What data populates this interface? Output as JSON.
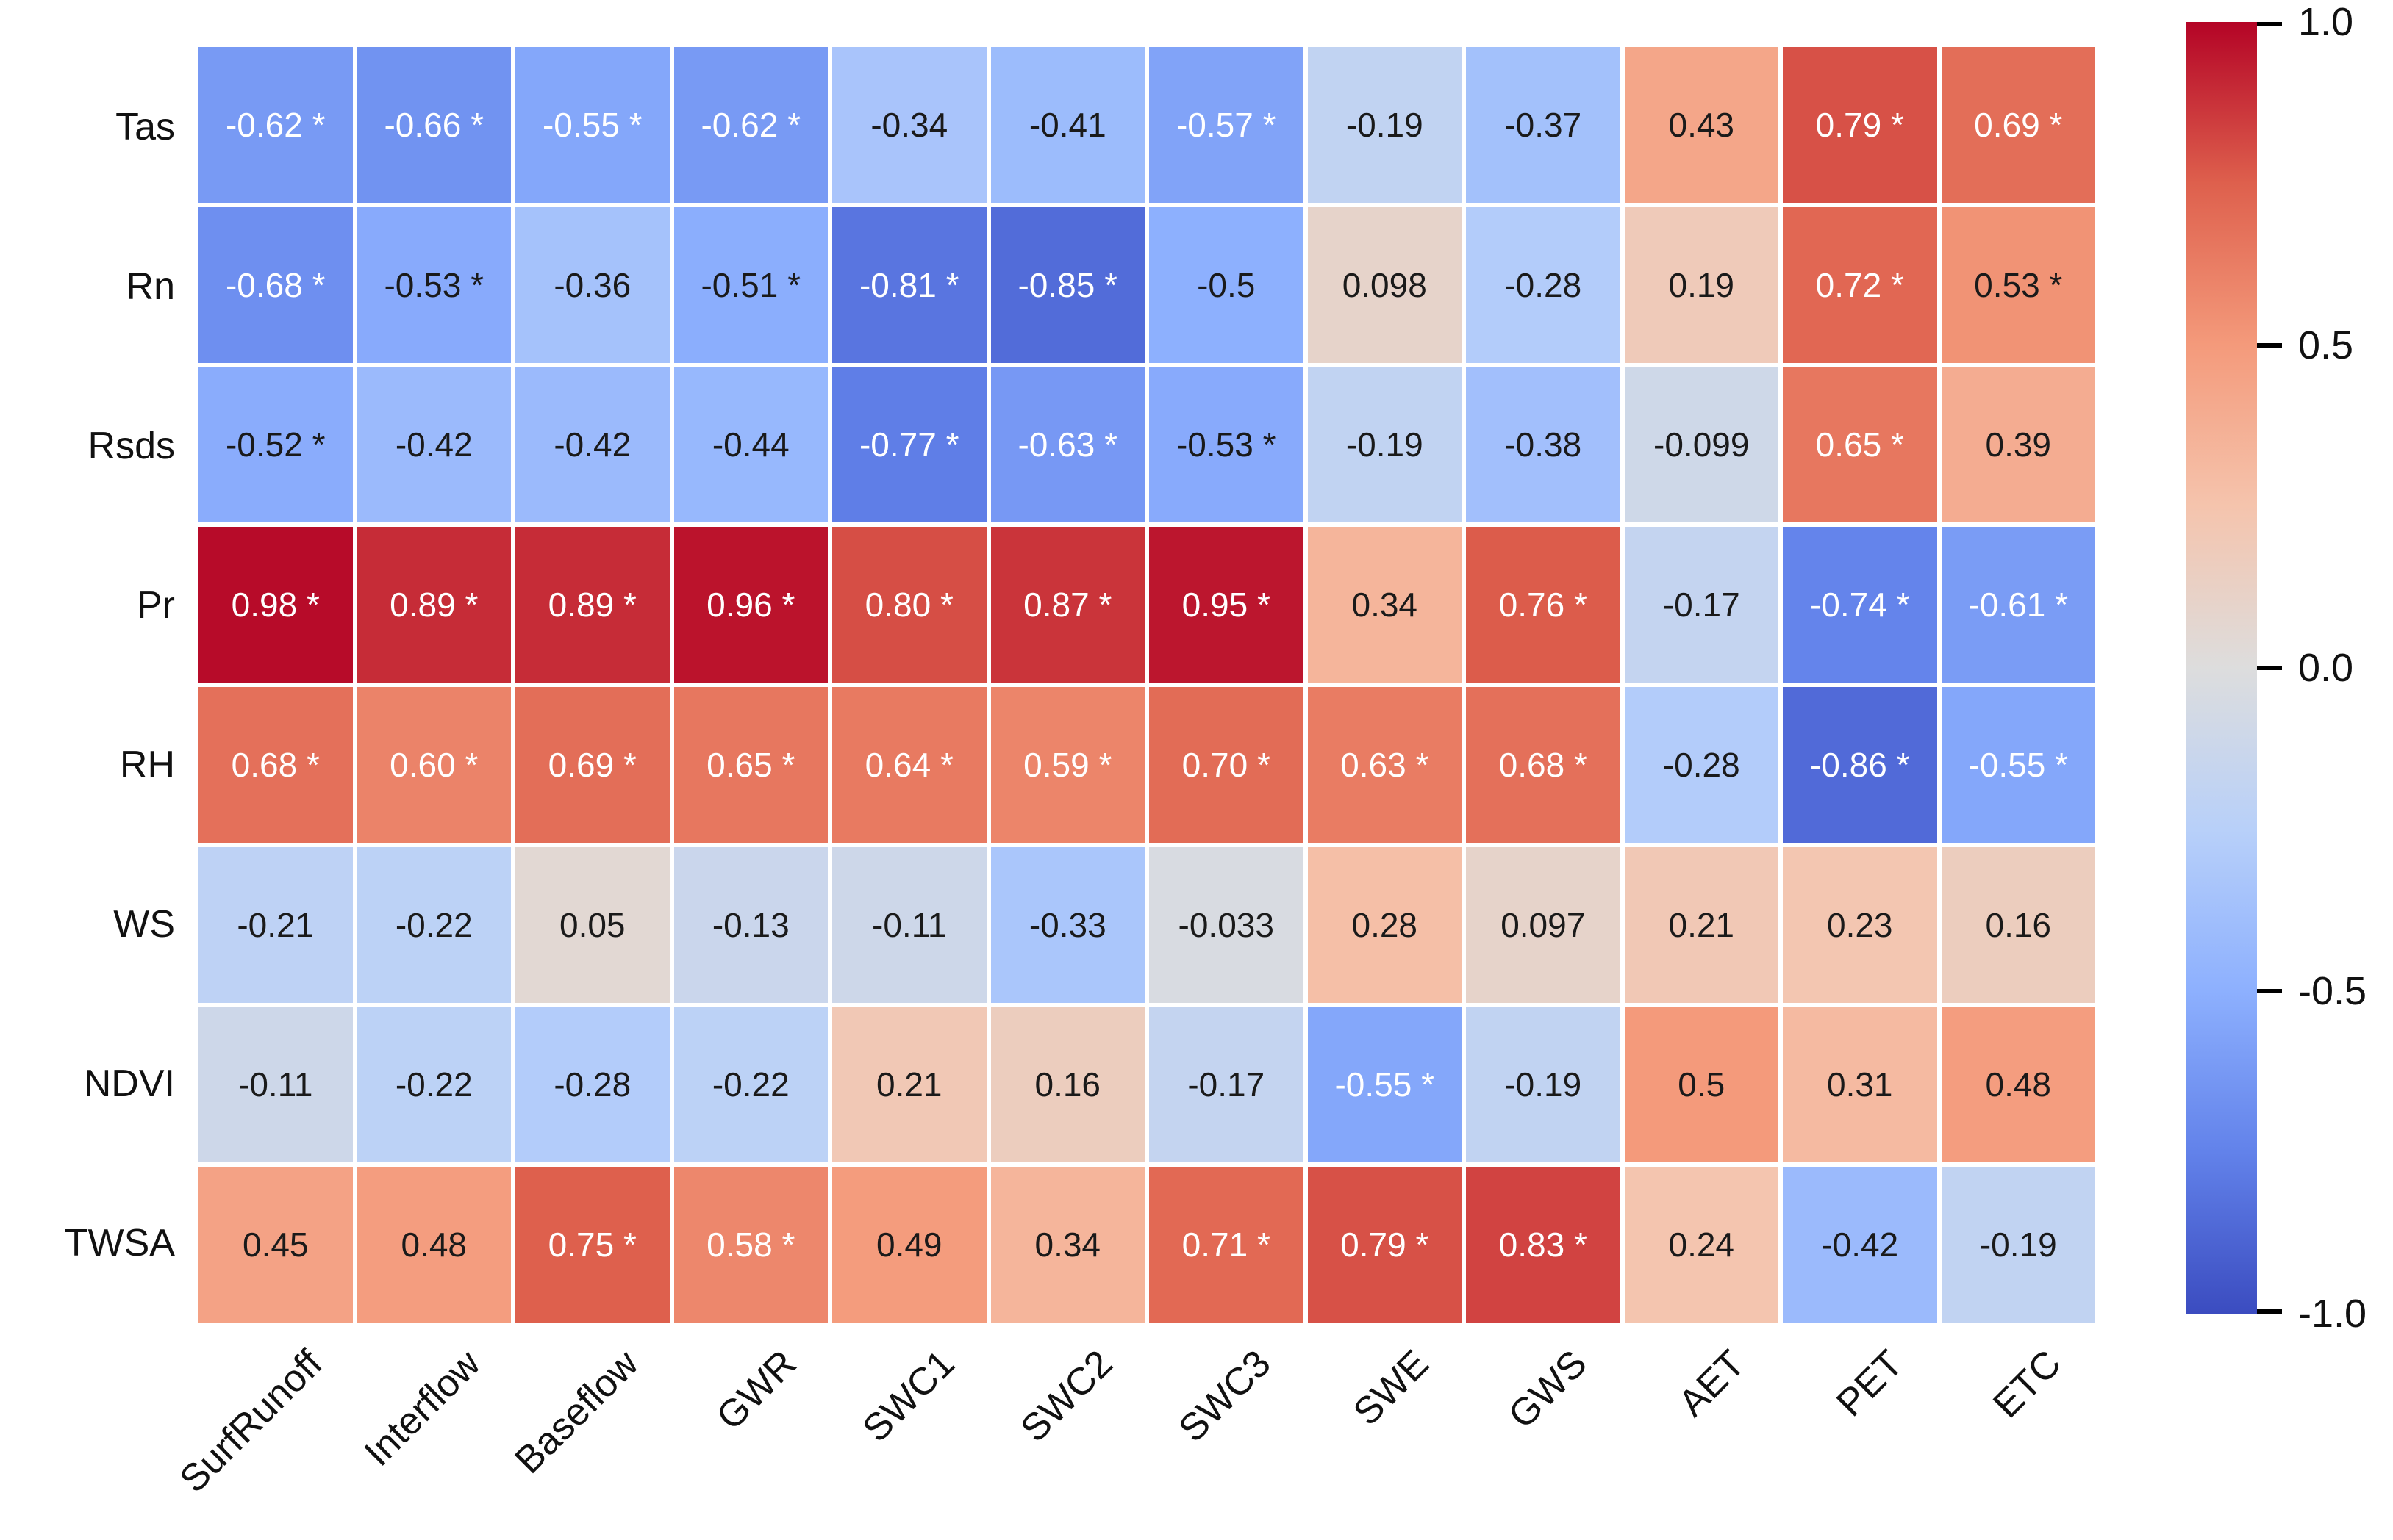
{
  "figure": {
    "background": "#ffffff",
    "label_color": "#111111",
    "grid_gap_color": "#ffffff"
  },
  "chart_data": {
    "type": "heatmap",
    "title": "",
    "xlabel": "",
    "ylabel": "",
    "rows": [
      "Tas",
      "Rn",
      "Rsds",
      "Pr",
      "RH",
      "WS",
      "NDVI",
      "TWSA"
    ],
    "columns": [
      "SurfRunoff",
      "Interflow",
      "Baseflow",
      "GWR",
      "SWC1",
      "SWC2",
      "SWC3",
      "SWE",
      "GWS",
      "AET",
      "PET",
      "ETC"
    ],
    "values": [
      [
        -0.62,
        -0.66,
        -0.55,
        -0.62,
        -0.34,
        -0.41,
        -0.57,
        -0.19,
        -0.37,
        0.43,
        0.79,
        0.69
      ],
      [
        -0.68,
        -0.53,
        -0.36,
        -0.51,
        -0.81,
        -0.85,
        -0.5,
        0.098,
        -0.28,
        0.19,
        0.72,
        0.53
      ],
      [
        -0.52,
        -0.42,
        -0.42,
        -0.44,
        -0.77,
        -0.63,
        -0.53,
        -0.19,
        -0.38,
        -0.099,
        0.65,
        0.39
      ],
      [
        0.98,
        0.89,
        0.89,
        0.96,
        0.8,
        0.87,
        0.95,
        0.34,
        0.76,
        -0.17,
        -0.74,
        -0.61
      ],
      [
        0.68,
        0.6,
        0.69,
        0.65,
        0.64,
        0.59,
        0.7,
        0.63,
        0.68,
        -0.28,
        -0.86,
        -0.55
      ],
      [
        -0.21,
        -0.22,
        0.05,
        -0.13,
        -0.11,
        -0.33,
        -0.033,
        0.28,
        0.097,
        0.21,
        0.23,
        0.16
      ],
      [
        -0.11,
        -0.22,
        -0.28,
        -0.22,
        0.21,
        0.16,
        -0.17,
        -0.55,
        -0.19,
        0.5,
        0.31,
        0.48
      ],
      [
        0.45,
        0.48,
        0.75,
        0.58,
        0.49,
        0.34,
        0.71,
        0.79,
        0.83,
        0.24,
        -0.42,
        -0.19
      ]
    ],
    "annotations": [
      [
        "-0.62 *",
        "-0.66 *",
        "-0.55 *",
        "-0.62 *",
        "-0.34",
        "-0.41",
        "-0.57 *",
        "-0.19",
        "-0.37",
        "0.43",
        "0.79 *",
        "0.69 *"
      ],
      [
        "-0.68 *",
        "-0.53 *",
        "-0.36",
        "-0.51 *",
        "-0.81 *",
        "-0.85 *",
        "-0.5",
        "0.098",
        "-0.28",
        "0.19",
        "0.72 *",
        "0.53 *"
      ],
      [
        "-0.52 *",
        "-0.42",
        "-0.42",
        "-0.44",
        "-0.77 *",
        "-0.63 *",
        "-0.53 *",
        "-0.19",
        "-0.38",
        "-0.099",
        "0.65 *",
        "0.39"
      ],
      [
        "0.98 *",
        "0.89 *",
        "0.89 *",
        "0.96 *",
        "0.80 *",
        "0.87 *",
        "0.95 *",
        "0.34",
        "0.76 *",
        "-0.17",
        "-0.74 *",
        "-0.61 *"
      ],
      [
        "0.68 *",
        "0.60 *",
        "0.69 *",
        "0.65 *",
        "0.64 *",
        "0.59 *",
        "0.70 *",
        "0.63 *",
        "0.68 *",
        "-0.28",
        "-0.86 *",
        "-0.55 *"
      ],
      [
        "-0.21",
        "-0.22",
        "0.05",
        "-0.13",
        "-0.11",
        "-0.33",
        "-0.033",
        "0.28",
        "0.097",
        "0.21",
        "0.23",
        "0.16"
      ],
      [
        "-0.11",
        "-0.22",
        "-0.28",
        "-0.22",
        "0.21",
        "0.16",
        "-0.17",
        "-0.55 *",
        "-0.19",
        "0.5",
        "0.31",
        "0.48"
      ],
      [
        "0.45",
        "0.48",
        "0.75 *",
        "0.58 *",
        "0.49",
        "0.34",
        "0.71 *",
        "0.79 *",
        "0.83 *",
        "0.24",
        "-0.42",
        "-0.19"
      ]
    ],
    "significance_marker": "*",
    "colormap": {
      "name": "coolwarm",
      "vmin": -1,
      "vmax": 1,
      "stops": [
        {
          "t": 0.0,
          "color": "#3b4cc0"
        },
        {
          "t": 0.125,
          "color": "#6282ea"
        },
        {
          "t": 0.25,
          "color": "#8db0fe"
        },
        {
          "t": 0.375,
          "color": "#b8d0f9"
        },
        {
          "t": 0.5,
          "color": "#dddddd"
        },
        {
          "t": 0.625,
          "color": "#f5c4ad"
        },
        {
          "t": 0.75,
          "color": "#f49a7b"
        },
        {
          "t": 0.875,
          "color": "#de604d"
        },
        {
          "t": 1.0,
          "color": "#b40426"
        }
      ]
    },
    "annot_text": {
      "light": "#ffffff",
      "dark": "#1a1a1a",
      "white_threshold": 0.54
    },
    "colorbar": {
      "position": "right",
      "ticks": [
        {
          "label": "1.0",
          "value": 1.0
        },
        {
          "label": "0.5",
          "value": 0.5
        },
        {
          "label": "0.0",
          "value": 0.0
        },
        {
          "label": "-0.5",
          "value": -0.5
        },
        {
          "label": "-1.0",
          "value": -1.0
        }
      ]
    },
    "grid_on": false,
    "legend_position": "right"
  }
}
